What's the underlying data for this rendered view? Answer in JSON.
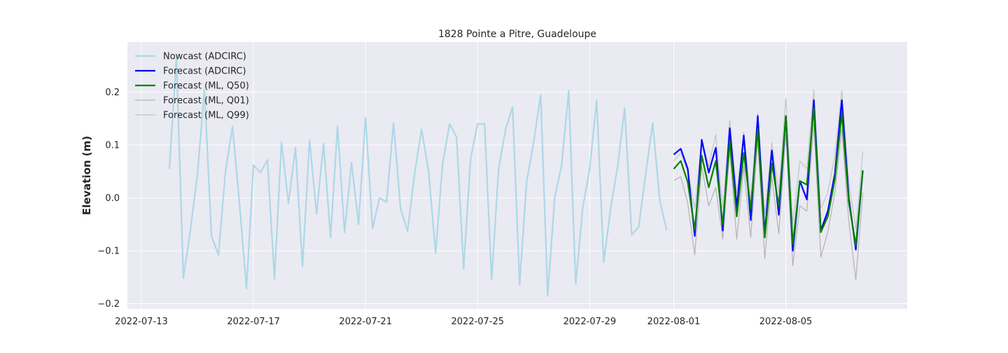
{
  "chart_data": {
    "type": "line",
    "title": "1828 Pointe a Pitre, Guadeloupe",
    "xlabel": "",
    "ylabel": "Elevation (m)",
    "xlim": [
      "2022-07-12T12:00",
      "2022-08-09T08:00"
    ],
    "ylim": [
      -0.21,
      0.295
    ],
    "x_ticks": [
      "2022-07-13",
      "2022-07-17",
      "2022-07-21",
      "2022-07-25",
      "2022-07-29",
      "2022-08-01",
      "2022-08-05"
    ],
    "y_ticks": [
      -0.2,
      -0.1,
      0.0,
      0.1,
      0.2
    ],
    "y_tick_labels": [
      "−0.2",
      "−0.1",
      "0.0",
      "0.1",
      "0.2"
    ],
    "grid": true,
    "legend_position": "top-left",
    "background": "#eaeaf2",
    "series": [
      {
        "name": "Nowcast (ADCIRC)",
        "color": "#add8e6",
        "x": [
          "2022-07-14T00:00",
          "2022-07-14T06:00",
          "2022-07-14T12:00",
          "2022-07-14T18:00",
          "2022-07-15T00:00",
          "2022-07-15T06:00",
          "2022-07-15T12:00",
          "2022-07-15T18:00",
          "2022-07-16T00:00",
          "2022-07-16T06:00",
          "2022-07-16T12:00",
          "2022-07-16T18:00",
          "2022-07-17T00:00",
          "2022-07-17T06:00",
          "2022-07-17T12:00",
          "2022-07-17T18:00",
          "2022-07-18T00:00",
          "2022-07-18T06:00",
          "2022-07-18T12:00",
          "2022-07-18T18:00",
          "2022-07-19T00:00",
          "2022-07-19T06:00",
          "2022-07-19T12:00",
          "2022-07-19T18:00",
          "2022-07-20T00:00",
          "2022-07-20T06:00",
          "2022-07-20T12:00",
          "2022-07-20T18:00",
          "2022-07-21T00:00",
          "2022-07-21T06:00",
          "2022-07-21T12:00",
          "2022-07-21T18:00",
          "2022-07-22T00:00",
          "2022-07-22T06:00",
          "2022-07-22T12:00",
          "2022-07-22T18:00",
          "2022-07-23T00:00",
          "2022-07-23T06:00",
          "2022-07-23T12:00",
          "2022-07-23T18:00",
          "2022-07-24T00:00",
          "2022-07-24T06:00",
          "2022-07-24T12:00",
          "2022-07-24T18:00",
          "2022-07-25T00:00",
          "2022-07-25T06:00",
          "2022-07-25T12:00",
          "2022-07-25T18:00",
          "2022-07-26T00:00",
          "2022-07-26T06:00",
          "2022-07-26T12:00",
          "2022-07-26T18:00",
          "2022-07-27T00:00",
          "2022-07-27T06:00",
          "2022-07-27T12:00",
          "2022-07-27T18:00",
          "2022-07-28T00:00",
          "2022-07-28T06:00",
          "2022-07-28T12:00",
          "2022-07-28T18:00",
          "2022-07-29T00:00",
          "2022-07-29T06:00",
          "2022-07-29T12:00",
          "2022-07-29T18:00",
          "2022-07-30T00:00",
          "2022-07-30T06:00",
          "2022-07-30T12:00",
          "2022-07-30T18:00",
          "2022-07-31T00:00",
          "2022-07-31T06:00",
          "2022-07-31T12:00",
          "2022-07-31T18:00"
        ],
        "y": [
          0.055,
          0.265,
          -0.152,
          -0.06,
          0.045,
          0.205,
          -0.072,
          -0.108,
          0.05,
          0.135,
          -0.01,
          -0.172,
          0.062,
          0.048,
          0.072,
          -0.153,
          0.105,
          -0.01,
          0.095,
          -0.13,
          0.109,
          -0.03,
          0.103,
          -0.075,
          0.136,
          -0.065,
          0.067,
          -0.05,
          0.152,
          -0.058,
          0.0,
          -0.008,
          0.142,
          -0.02,
          -0.063,
          0.045,
          0.13,
          0.05,
          -0.105,
          0.065,
          0.14,
          0.115,
          -0.135,
          0.075,
          0.14,
          0.14,
          -0.155,
          0.055,
          0.13,
          0.172,
          -0.165,
          0.03,
          0.105,
          0.195,
          -0.185,
          0.0,
          0.062,
          0.203,
          -0.163,
          -0.02,
          0.055,
          0.185,
          -0.122,
          -0.02,
          0.06,
          0.17,
          -0.07,
          -0.055,
          0.045,
          0.142,
          -0.005,
          -0.062
        ]
      },
      {
        "name": "Forecast (ADCIRC)",
        "color": "#0000ff",
        "x": [
          "2022-08-01T00:00",
          "2022-08-01T06:00",
          "2022-08-01T12:00",
          "2022-08-01T18:00",
          "2022-08-02T00:00",
          "2022-08-02T06:00",
          "2022-08-02T12:00",
          "2022-08-02T18:00",
          "2022-08-03T00:00",
          "2022-08-03T06:00",
          "2022-08-03T12:00",
          "2022-08-03T18:00",
          "2022-08-04T00:00",
          "2022-08-04T06:00",
          "2022-08-04T12:00",
          "2022-08-04T18:00",
          "2022-08-05T00:00",
          "2022-08-05T06:00",
          "2022-08-05T12:00",
          "2022-08-05T18:00",
          "2022-08-06T00:00",
          "2022-08-06T06:00",
          "2022-08-06T12:00",
          "2022-08-06T18:00",
          "2022-08-07T00:00",
          "2022-08-07T06:00",
          "2022-08-07T12:00",
          "2022-08-07T18:00",
          "2022-08-08T00:00",
          "2022-08-08T06:00",
          "2022-08-08T12:00"
        ],
        "y": [
          0.082,
          0.093,
          0.055,
          -0.072,
          0.11,
          0.048,
          0.095,
          -0.062,
          0.132,
          -0.018,
          0.118,
          -0.042,
          0.155,
          -0.068,
          0.09,
          -0.032,
          0.155,
          -0.1,
          0.032,
          -0.003,
          0.185,
          -0.062,
          -0.025,
          0.045,
          0.185,
          0.0,
          -0.098,
          0.052,
          null,
          null,
          null
        ]
      },
      {
        "name": "Forecast (ML, Q50)",
        "color": "#008000",
        "x": [
          "2022-08-01T00:00",
          "2022-08-01T06:00",
          "2022-08-01T12:00",
          "2022-08-01T18:00",
          "2022-08-02T00:00",
          "2022-08-02T06:00",
          "2022-08-02T12:00",
          "2022-08-02T18:00",
          "2022-08-03T00:00",
          "2022-08-03T06:00",
          "2022-08-03T12:00",
          "2022-08-03T18:00",
          "2022-08-04T00:00",
          "2022-08-04T06:00",
          "2022-08-04T12:00",
          "2022-08-04T18:00",
          "2022-08-05T00:00",
          "2022-08-05T06:00",
          "2022-08-05T12:00",
          "2022-08-05T18:00",
          "2022-08-06T00:00",
          "2022-08-06T06:00",
          "2022-08-06T12:00",
          "2022-08-06T18:00",
          "2022-08-07T00:00",
          "2022-08-07T06:00",
          "2022-08-07T12:00",
          "2022-08-07T18:00"
        ],
        "y": [
          0.055,
          0.07,
          0.03,
          -0.06,
          0.08,
          0.02,
          0.07,
          -0.05,
          0.108,
          -0.035,
          0.085,
          -0.02,
          0.13,
          -0.075,
          0.065,
          -0.015,
          0.155,
          -0.088,
          0.032,
          0.025,
          0.17,
          -0.065,
          -0.035,
          0.035,
          0.16,
          -0.008,
          -0.09,
          0.052
        ]
      },
      {
        "name": "Forecast (ML, Q01)",
        "color": "#b3b3b3",
        "x": [
          "2022-08-01T00:00",
          "2022-08-01T06:00",
          "2022-08-01T12:00",
          "2022-08-01T18:00",
          "2022-08-02T00:00",
          "2022-08-02T06:00",
          "2022-08-02T12:00",
          "2022-08-02T18:00",
          "2022-08-03T00:00",
          "2022-08-03T06:00",
          "2022-08-03T12:00",
          "2022-08-03T18:00",
          "2022-08-04T00:00",
          "2022-08-04T06:00",
          "2022-08-04T12:00",
          "2022-08-04T18:00",
          "2022-08-05T00:00",
          "2022-08-05T06:00",
          "2022-08-05T12:00",
          "2022-08-05T18:00",
          "2022-08-06T00:00",
          "2022-08-06T06:00",
          "2022-08-06T12:00",
          "2022-08-06T18:00",
          "2022-08-07T00:00",
          "2022-08-07T06:00",
          "2022-08-07T12:00",
          "2022-08-07T18:00"
        ],
        "y": [
          0.033,
          0.04,
          -0.01,
          -0.108,
          0.06,
          -0.015,
          0.02,
          -0.078,
          0.09,
          -0.078,
          0.06,
          -0.075,
          0.11,
          -0.115,
          0.04,
          -0.068,
          0.12,
          -0.128,
          -0.015,
          -0.025,
          0.14,
          -0.112,
          -0.065,
          0.01,
          0.13,
          -0.045,
          -0.155,
          0.01
        ]
      },
      {
        "name": "Forecast (ML, Q99)",
        "color": "#c4c4c4",
        "x": [
          "2022-08-01T00:00",
          "2022-08-01T06:00",
          "2022-08-01T12:00",
          "2022-08-01T18:00",
          "2022-08-02T00:00",
          "2022-08-02T06:00",
          "2022-08-02T12:00",
          "2022-08-02T18:00",
          "2022-08-03T00:00",
          "2022-08-03T06:00",
          "2022-08-03T12:00",
          "2022-08-03T18:00",
          "2022-08-04T00:00",
          "2022-08-04T06:00",
          "2022-08-04T12:00",
          "2022-08-04T18:00",
          "2022-08-05T00:00",
          "2022-08-05T06:00",
          "2022-08-05T12:00",
          "2022-08-05T18:00",
          "2022-08-06T00:00",
          "2022-08-06T06:00",
          "2022-08-06T12:00",
          "2022-08-06T18:00",
          "2022-08-07T00:00",
          "2022-08-07T06:00",
          "2022-08-07T12:00",
          "2022-08-07T18:00"
        ],
        "y": [
          0.07,
          0.085,
          0.05,
          -0.02,
          0.11,
          0.06,
          0.12,
          -0.02,
          0.148,
          0.01,
          0.125,
          0.0,
          0.16,
          -0.03,
          0.105,
          0.01,
          0.188,
          -0.05,
          0.07,
          0.055,
          0.205,
          -0.02,
          0.01,
          0.08,
          0.203,
          0.03,
          -0.06,
          0.088
        ]
      }
    ]
  }
}
